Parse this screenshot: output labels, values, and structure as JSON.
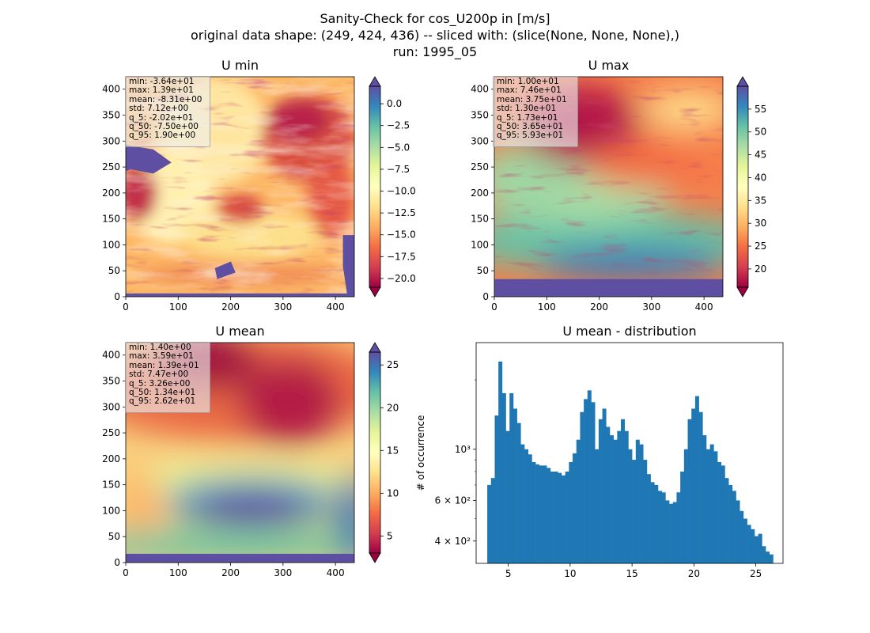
{
  "figure": {
    "title_lines": [
      "Sanity-Check for cos_U200p in [m/s]",
      "original data shape: (249, 424, 436) -- sliced with: (slice(None, None, None),)",
      "run: 1995_05"
    ]
  },
  "chart_data": [
    {
      "type": "heatmap",
      "title": "U min",
      "colormap": "Spectral",
      "xlim": [
        0,
        436
      ],
      "ylim": [
        0,
        424
      ],
      "x_ticks": [
        "0",
        "100",
        "200",
        "300",
        "400"
      ],
      "y_ticks": [
        "0",
        "50",
        "100",
        "150",
        "200",
        "250",
        "300",
        "350",
        "400"
      ],
      "colorbar": {
        "vmin": -21.0,
        "vmax": 2.0,
        "extend": "both",
        "ticks": [
          "0.0",
          "−2.5",
          "−5.0",
          "−7.5",
          "−10.0",
          "−12.5",
          "−15.0",
          "−17.5",
          "−20.0"
        ],
        "tick_values": [
          0,
          -2.5,
          -5,
          -7.5,
          -10,
          -12.5,
          -15,
          -17.5,
          -20
        ]
      },
      "stats": [
        "min: -3.64e+01",
        "max: 1.39e+01",
        "mean: -8.31e+00",
        "std: 7.12e+00",
        "q_5: -2.02e+01",
        "q_50: -7.50e+00",
        "q_95: 1.90e+00"
      ]
    },
    {
      "type": "heatmap",
      "title": "U max",
      "colormap": "Spectral",
      "xlim": [
        0,
        436
      ],
      "ylim": [
        0,
        424
      ],
      "x_ticks": [
        "0",
        "100",
        "200",
        "300",
        "400"
      ],
      "y_ticks": [
        "0",
        "50",
        "100",
        "150",
        "200",
        "250",
        "300",
        "350",
        "400"
      ],
      "colorbar": {
        "vmin": 16.0,
        "vmax": 60.0,
        "extend": "both",
        "ticks": [
          "55",
          "50",
          "45",
          "40",
          "35",
          "30",
          "25",
          "20"
        ],
        "tick_values": [
          55,
          50,
          45,
          40,
          35,
          30,
          25,
          20
        ]
      },
      "stats": [
        "min: 1.00e+01",
        "max: 7.46e+01",
        "mean: 3.75e+01",
        "std: 1.30e+01",
        "q_5: 1.73e+01",
        "q_50: 3.65e+01",
        "q_95: 5.93e+01"
      ]
    },
    {
      "type": "heatmap",
      "title": "U mean",
      "colormap": "Spectral",
      "xlim": [
        0,
        436
      ],
      "ylim": [
        0,
        424
      ],
      "x_ticks": [
        "0",
        "100",
        "200",
        "300",
        "400"
      ],
      "y_ticks": [
        "0",
        "50",
        "100",
        "150",
        "200",
        "250",
        "300",
        "350",
        "400"
      ],
      "colorbar": {
        "vmin": 3.0,
        "vmax": 26.5,
        "extend": "both",
        "ticks": [
          "25",
          "20",
          "15",
          "10",
          "5"
        ],
        "tick_values": [
          25,
          20,
          15,
          10,
          5
        ]
      },
      "stats": [
        "min: 1.40e+00",
        "max: 3.59e+01",
        "mean: 1.39e+01",
        "std: 7.47e+00",
        "q_5: 3.26e+00",
        "q_50: 1.34e+01",
        "q_95: 2.62e+01"
      ]
    },
    {
      "type": "bar",
      "title": "U mean - distribution",
      "ylabel": "# of occurrence",
      "xlabel": "",
      "y_scale": "log",
      "xlim": [
        2.4,
        27.2
      ],
      "ylim": [
        320,
        2900
      ],
      "x_ticks": [
        5,
        10,
        15,
        20,
        25
      ],
      "y_tick_labels": [
        "10³",
        "6 × 10²",
        "4 × 10²"
      ],
      "y_tick_values": [
        1000,
        600,
        400
      ],
      "color": "#1f77b4",
      "x": [
        3.3,
        3.6,
        3.9,
        4.2,
        4.5,
        4.8,
        5.1,
        5.4,
        5.7,
        6.0,
        6.3,
        6.6,
        6.9,
        7.2,
        7.5,
        7.8,
        8.1,
        8.4,
        8.7,
        9.0,
        9.3,
        9.6,
        9.9,
        10.2,
        10.5,
        10.8,
        11.1,
        11.4,
        11.7,
        12.0,
        12.3,
        12.6,
        12.9,
        13.2,
        13.5,
        13.8,
        14.1,
        14.4,
        14.7,
        15.0,
        15.3,
        15.6,
        15.9,
        16.2,
        16.5,
        16.8,
        17.1,
        17.4,
        17.7,
        18.0,
        18.3,
        18.6,
        18.9,
        19.2,
        19.5,
        19.8,
        20.1,
        20.4,
        20.7,
        21.0,
        21.3,
        21.6,
        21.9,
        22.2,
        22.5,
        22.8,
        23.1,
        23.4,
        23.7,
        24.0,
        24.3,
        24.6,
        24.9,
        25.2,
        25.5,
        25.8,
        26.1
      ],
      "values": [
        700,
        750,
        1400,
        2400,
        1750,
        1200,
        1750,
        1500,
        1300,
        1050,
        1000,
        950,
        880,
        860,
        850,
        850,
        830,
        800,
        800,
        790,
        770,
        800,
        880,
        960,
        1100,
        1450,
        1650,
        1800,
        1600,
        1000,
        1350,
        1500,
        1250,
        1150,
        1100,
        1200,
        1350,
        1200,
        1000,
        900,
        1100,
        1050,
        900,
        780,
        720,
        700,
        660,
        650,
        600,
        580,
        590,
        650,
        800,
        1000,
        1350,
        1500,
        1700,
        1450,
        1150,
        1000,
        1050,
        980,
        880,
        850,
        750,
        700,
        660,
        600,
        540,
        500,
        470,
        450,
        420,
        430,
        380,
        360,
        350
      ]
    }
  ]
}
